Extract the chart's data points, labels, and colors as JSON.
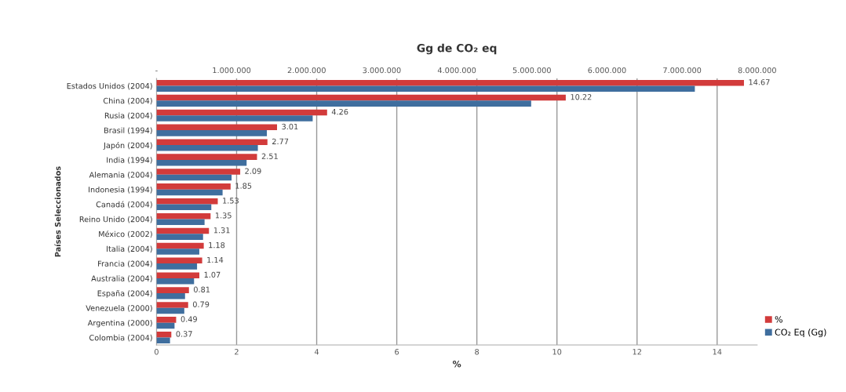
{
  "chart_data": {
    "type": "bar",
    "orientation": "horizontal",
    "x2label": "Gg de CO₂ eq",
    "xlabel": "%",
    "ylabel": "Países Seleccionados",
    "categories": [
      "Estados Unidos (2004)",
      "China (2004)",
      "Rusia (2004)",
      "Brasil (1994)",
      "Japón (2004)",
      "India (1994)",
      "Alemania (2004)",
      "Indonesia (1994)",
      "Canadá (2004)",
      "Reino Unido (2004)",
      "México (2002)",
      "Italia (2004)",
      "Francia (2004)",
      "Australia (2004)",
      "España (2004)",
      "Venezuela (2000)",
      "Argentina (2000)",
      "Colombia (2004)"
    ],
    "series": [
      {
        "name": "%",
        "color": "#d23b3b",
        "values": [
          14.67,
          10.22,
          4.26,
          3.01,
          2.77,
          2.51,
          2.09,
          1.85,
          1.53,
          1.35,
          1.31,
          1.18,
          1.14,
          1.07,
          0.81,
          0.79,
          0.49,
          0.37
        ],
        "value_labels": [
          "14.67",
          "10.22",
          "4.26",
          "3.01",
          "2.77",
          "2.51",
          "2.09",
          "1.85",
          "1.53",
          "1.35",
          "1.31",
          "1.18",
          "1.14",
          "1.07",
          "0.81",
          "0.79",
          "0.49",
          "0.37"
        ]
      },
      {
        "name": "CO₂ Eq (Gg)",
        "color": "#3f6e9e",
        "axis": "x2",
        "values": [
          7170000,
          4990000,
          2080000,
          1470000,
          1350000,
          1200000,
          1000000,
          880000,
          730000,
          640000,
          620000,
          570000,
          540000,
          500000,
          380000,
          370000,
          240000,
          180000
        ]
      }
    ],
    "xlim": [
      0,
      15
    ],
    "xticks": [
      0,
      2,
      4,
      6,
      8,
      10,
      12,
      14
    ],
    "x2lim": [
      0,
      8000000
    ],
    "x2ticks": [
      {
        "value": 0,
        "label": "-"
      },
      {
        "value": 1000000,
        "label": "1.000.000"
      },
      {
        "value": 2000000,
        "label": "2.000.000"
      },
      {
        "value": 3000000,
        "label": "3.000.000"
      },
      {
        "value": 4000000,
        "label": "4.000.000"
      },
      {
        "value": 5000000,
        "label": "5.000.000"
      },
      {
        "value": 6000000,
        "label": "6.000.000"
      },
      {
        "value": 7000000,
        "label": "7.000.000"
      },
      {
        "value": 8000000,
        "label": "8.000.000"
      }
    ],
    "grid": "x",
    "legend": "bottom right"
  }
}
